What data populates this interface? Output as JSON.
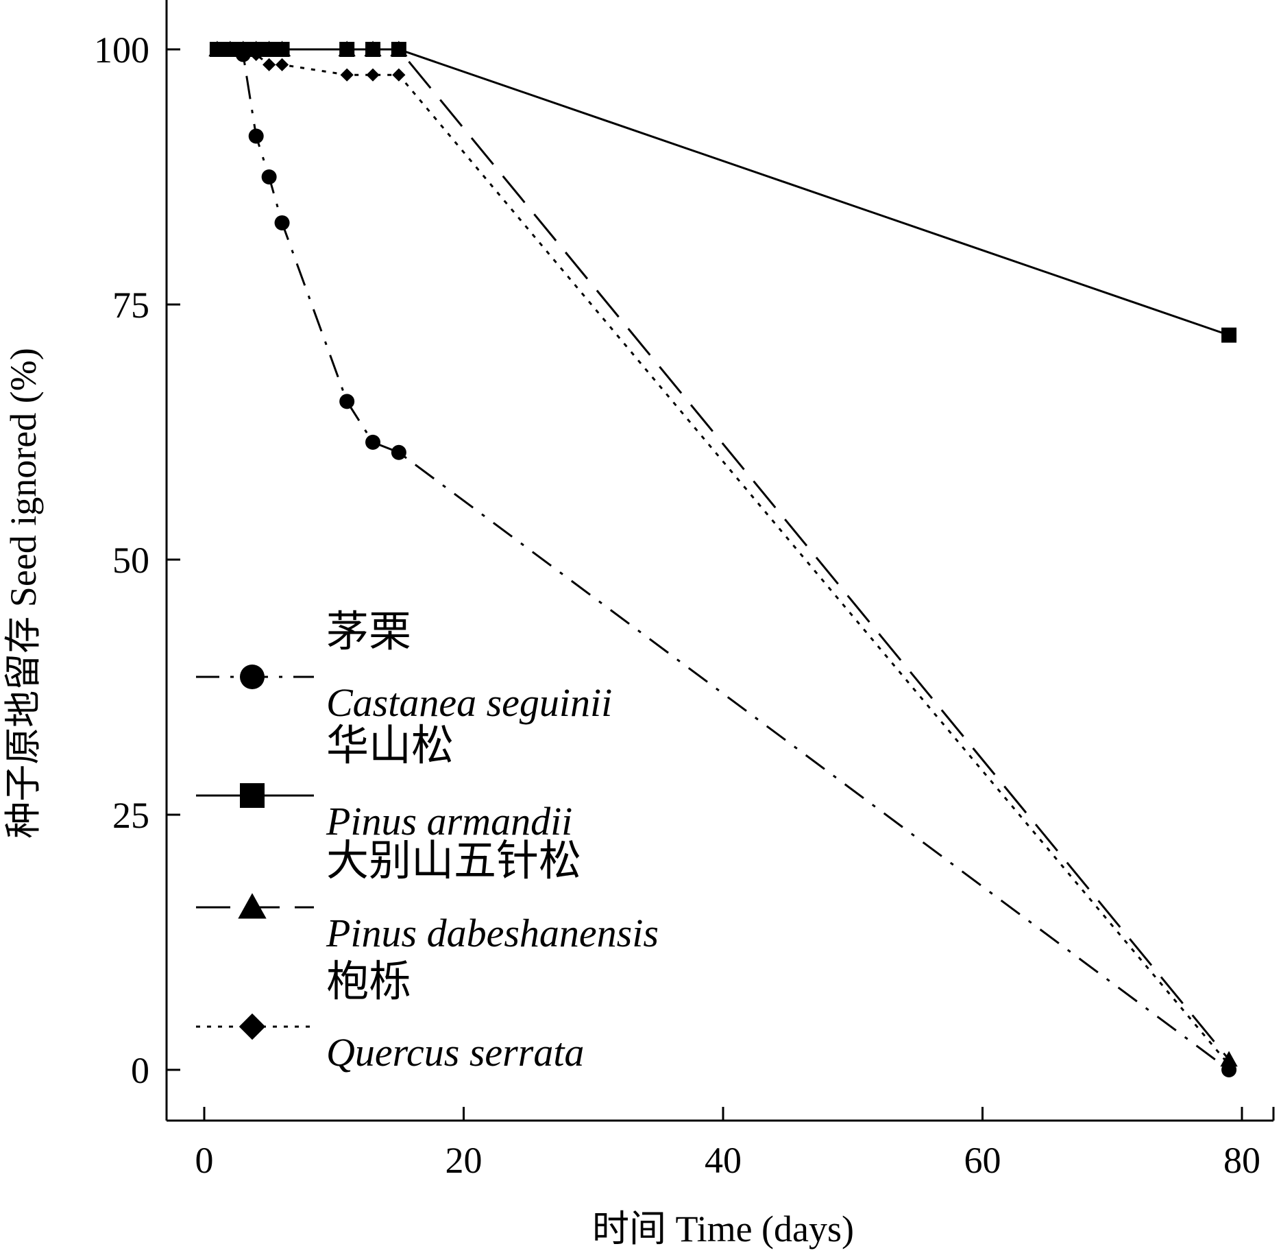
{
  "chart_data": {
    "type": "line",
    "title": "",
    "xlabel": "时间 Time (days)",
    "ylabel": "种子原地留存 Seed ignored (%)",
    "xlim": [
      -3,
      82
    ],
    "ylim": [
      -5,
      105
    ],
    "xticks": [
      0,
      20,
      40,
      60,
      80
    ],
    "yticks": [
      0,
      25,
      50,
      75,
      100
    ],
    "grid": false,
    "legend_position": "lower-left",
    "series": [
      {
        "key": "castanea",
        "name_cn": "茅栗",
        "name_en": "Castanea seguinii",
        "marker": "circle",
        "line_style": "dash-dot",
        "x": [
          1,
          2,
          3,
          4,
          5,
          6,
          11,
          13,
          15,
          79
        ],
        "y": [
          100,
          100,
          99.5,
          91.5,
          87.5,
          83,
          65.5,
          61.5,
          60.5,
          0
        ]
      },
      {
        "key": "pinus_armandii",
        "name_cn": "华山松",
        "name_en": "Pinus armandii",
        "marker": "square",
        "line_style": "solid",
        "x": [
          1,
          2,
          3,
          4,
          5,
          6,
          11,
          13,
          15,
          79
        ],
        "y": [
          100,
          100,
          100,
          100,
          100,
          100,
          100,
          100,
          100,
          72
        ]
      },
      {
        "key": "pinus_dabeshanensis",
        "name_cn": "大别山五针松",
        "name_en": "Pinus dabeshanensis",
        "marker": "triangle",
        "line_style": "dashed",
        "x": [
          1,
          2,
          3,
          4,
          5,
          6,
          11,
          13,
          15,
          79
        ],
        "y": [
          100,
          100,
          100,
          100,
          100,
          100,
          100,
          100,
          100,
          1
        ]
      },
      {
        "key": "quercus",
        "name_cn": "枹栎",
        "name_en": "Quercus serrata",
        "marker": "diamond",
        "line_style": "dotted",
        "x": [
          1,
          2,
          3,
          4,
          5,
          6,
          11,
          13,
          15,
          79
        ],
        "y": [
          100,
          100,
          100,
          99.5,
          98.5,
          98.5,
          97.5,
          97.5,
          97.5,
          0.5
        ]
      }
    ],
    "colors": {
      "line": "#000000",
      "background": "#ffffff"
    }
  }
}
